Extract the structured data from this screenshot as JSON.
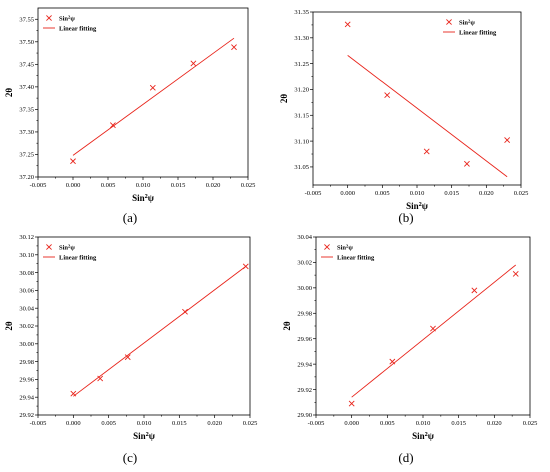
{
  "chart_data": [
    {
      "type": "scatter",
      "panel_label": "(a)",
      "xlabel": "Sin²ψ",
      "ylabel": "2θ",
      "xlim": [
        -0.005,
        0.025
      ],
      "ylim": [
        37.2,
        37.575
      ],
      "xticks": [
        "-0.005",
        "0.000",
        "0.005",
        "0.010",
        "0.015",
        "0.020",
        "0.025"
      ],
      "yticks": [
        "37.20",
        "37.25",
        "37.30",
        "37.35",
        "37.40",
        "37.45",
        "37.50",
        "37.55"
      ],
      "legend_position": "top-left",
      "series": [
        {
          "name": "Sin²ψ",
          "kind": "points",
          "color": "#e8231a",
          "x": [
            0.0,
            0.0057,
            0.0114,
            0.0172,
            0.023
          ],
          "y": [
            37.235,
            37.315,
            37.398,
            37.452,
            37.488
          ]
        },
        {
          "name": "Linear fitting",
          "kind": "line",
          "color": "#e8231a",
          "x": [
            0.0,
            0.023
          ],
          "y": [
            37.248,
            37.508
          ]
        }
      ]
    },
    {
      "type": "scatter",
      "panel_label": "(b)",
      "xlabel": "Sin²ψ",
      "ylabel": "2θ",
      "xlim": [
        -0.005,
        0.025
      ],
      "ylim": [
        31.015,
        31.35
      ],
      "xticks": [
        "-0.005",
        "0.000",
        "0.005",
        "0.010",
        "0.015",
        "0.020",
        "0.025"
      ],
      "yticks": [
        "31.05",
        "31.10",
        "31.15",
        "31.20",
        "31.25",
        "31.30",
        "31.35"
      ],
      "legend_position": "top-right",
      "series": [
        {
          "name": "Sin²ψ",
          "kind": "points",
          "color": "#e8231a",
          "x": [
            0.0,
            0.0057,
            0.0114,
            0.0172,
            0.023
          ],
          "y": [
            31.326,
            31.189,
            31.08,
            31.056,
            31.102
          ]
        },
        {
          "name": "Linear fitting",
          "kind": "line",
          "color": "#e8231a",
          "x": [
            0.0,
            0.023
          ],
          "y": [
            31.266,
            31.031
          ]
        }
      ]
    },
    {
      "type": "scatter",
      "panel_label": "(c)",
      "xlabel": "Sin²ψ",
      "ylabel": "2θ",
      "xlim": [
        -0.005,
        0.025
      ],
      "ylim": [
        29.92,
        30.12
      ],
      "xticks": [
        "-0.005",
        "0.000",
        "0.005",
        "0.010",
        "0.015",
        "0.020",
        "0.025"
      ],
      "yticks": [
        "29.92",
        "29.94",
        "29.96",
        "29.98",
        "30.00",
        "30.02",
        "30.04",
        "30.06",
        "30.08",
        "30.10",
        "30.12"
      ],
      "legend_position": "top-left",
      "series": [
        {
          "name": "Sin²ψ",
          "kind": "points",
          "color": "#e8231a",
          "x": [
            0.0,
            0.0038,
            0.0077,
            0.0158,
            0.0244
          ],
          "y": [
            29.944,
            29.961,
            29.985,
            30.036,
            30.087
          ]
        },
        {
          "name": "Linear fitting",
          "kind": "line",
          "color": "#e8231a",
          "x": [
            0.0,
            0.0244
          ],
          "y": [
            29.941,
            30.087
          ]
        }
      ]
    },
    {
      "type": "scatter",
      "panel_label": "(d)",
      "xlabel": "Sin²ψ",
      "ylabel": "2θ",
      "xlim": [
        -0.005,
        0.025
      ],
      "ylim": [
        29.9,
        30.04
      ],
      "xticks": [
        "-0.005",
        "0.000",
        "0.005",
        "0.010",
        "0.015",
        "0.020",
        "0.025"
      ],
      "yticks": [
        "29.90",
        "29.92",
        "29.94",
        "29.96",
        "29.98",
        "30.00",
        "30.02",
        "30.04"
      ],
      "legend_position": "top-left",
      "series": [
        {
          "name": "Sin²ψ",
          "kind": "points",
          "color": "#e8231a",
          "x": [
            0.0,
            0.0057,
            0.0114,
            0.0172,
            0.023
          ],
          "y": [
            29.909,
            29.942,
            29.968,
            29.998,
            30.011
          ]
        },
        {
          "name": "Linear fitting",
          "kind": "line",
          "color": "#e8231a",
          "x": [
            0.0,
            0.023
          ],
          "y": [
            29.914,
            30.018
          ]
        }
      ]
    }
  ]
}
